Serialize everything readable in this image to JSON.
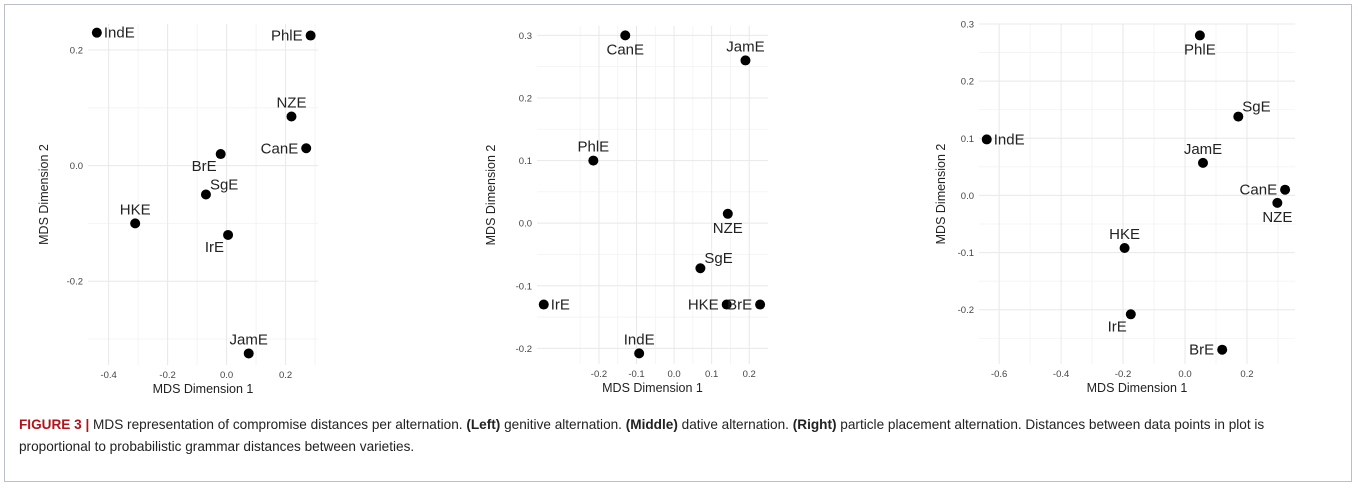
{
  "chart_data": [
    {
      "type": "scatter",
      "title": "",
      "xlabel": "MDS Dimension 1",
      "ylabel": "MDS Dimension 2",
      "xlim": [
        -0.47,
        0.31
      ],
      "ylim": [
        -0.345,
        0.245
      ],
      "x_ticks": [
        -0.4,
        -0.2,
        0.0,
        0.2
      ],
      "x_tick_labels": [
        "-0.4",
        "-0.2",
        "0.0",
        "0.2"
      ],
      "y_ticks": [
        -0.2,
        0.0,
        0.2
      ],
      "y_tick_labels": [
        "-0.2",
        "0.0",
        "0.2"
      ],
      "grid": true,
      "points": [
        {
          "label": "IndE",
          "x": -0.44,
          "y": 0.23,
          "label_pos": "right"
        },
        {
          "label": "PhlE",
          "x": 0.285,
          "y": 0.225,
          "label_pos": "left"
        },
        {
          "label": "NZE",
          "x": 0.22,
          "y": 0.085,
          "label_pos": "above"
        },
        {
          "label": "CanE",
          "x": 0.27,
          "y": 0.03,
          "label_pos": "left"
        },
        {
          "label": "BrE",
          "x": -0.02,
          "y": 0.02,
          "label_pos": "below-left"
        },
        {
          "label": "SgE",
          "x": -0.07,
          "y": -0.05,
          "label_pos": "above-right"
        },
        {
          "label": "HKE",
          "x": -0.31,
          "y": -0.1,
          "label_pos": "above"
        },
        {
          "label": "IrE",
          "x": 0.005,
          "y": -0.12,
          "label_pos": "below-left"
        },
        {
          "label": "JamE",
          "x": 0.075,
          "y": -0.325,
          "label_pos": "above"
        }
      ]
    },
    {
      "type": "scatter",
      "title": "",
      "xlabel": "MDS Dimension 1",
      "ylabel": "MDS Dimension 2",
      "xlim": [
        -0.365,
        0.25
      ],
      "ylim": [
        -0.225,
        0.315
      ],
      "x_ticks": [
        -0.2,
        -0.1,
        0.0,
        0.1,
        0.2
      ],
      "x_tick_labels": [
        "-0.2",
        "-0.1",
        "0.0",
        "0.1",
        "0.2"
      ],
      "y_ticks": [
        -0.2,
        -0.1,
        0.0,
        0.1,
        0.2,
        0.3
      ],
      "y_tick_labels": [
        "-0.2",
        "-0.1",
        "0.0",
        "0.1",
        "0.2",
        "0.3"
      ],
      "grid": true,
      "points": [
        {
          "label": "CanE",
          "x": -0.13,
          "y": 0.3,
          "label_pos": "below"
        },
        {
          "label": "JamE",
          "x": 0.19,
          "y": 0.26,
          "label_pos": "above"
        },
        {
          "label": "PhlE",
          "x": -0.215,
          "y": 0.1,
          "label_pos": "above"
        },
        {
          "label": "NZE",
          "x": 0.143,
          "y": 0.015,
          "label_pos": "below"
        },
        {
          "label": "SgE",
          "x": 0.07,
          "y": -0.072,
          "label_pos": "above-right"
        },
        {
          "label": "IrE",
          "x": -0.347,
          "y": -0.13,
          "label_pos": "right"
        },
        {
          "label": "HKE",
          "x": 0.14,
          "y": -0.13,
          "label_pos": "left"
        },
        {
          "label": "BrE",
          "x": 0.229,
          "y": -0.13,
          "label_pos": "left"
        },
        {
          "label": "IndE",
          "x": -0.093,
          "y": -0.208,
          "label_pos": "above"
        }
      ]
    },
    {
      "type": "scatter",
      "title": "",
      "xlabel": "MDS Dimension 1",
      "ylabel": "MDS Dimension 2",
      "xlim": [
        -0.665,
        0.355
      ],
      "ylim": [
        -0.295,
        0.3
      ],
      "x_ticks": [
        -0.6,
        -0.4,
        -0.2,
        0.0,
        0.2
      ],
      "x_tick_labels": [
        "-0.6",
        "-0.4",
        "-0.2",
        "0.0",
        "0.2"
      ],
      "y_ticks": [
        -0.2,
        -0.1,
        0.0,
        0.1,
        0.2,
        0.3
      ],
      "y_tick_labels": [
        "-0.2",
        "-0.1",
        "0.0",
        "0.1",
        "0.2",
        "0.3"
      ],
      "grid": true,
      "points": [
        {
          "label": "PhlE",
          "x": 0.048,
          "y": 0.28,
          "label_pos": "below"
        },
        {
          "label": "SgE",
          "x": 0.172,
          "y": 0.138,
          "label_pos": "above-right"
        },
        {
          "label": "IndE",
          "x": -0.64,
          "y": 0.098,
          "label_pos": "right"
        },
        {
          "label": "JamE",
          "x": 0.058,
          "y": 0.057,
          "label_pos": "above"
        },
        {
          "label": "CanE",
          "x": 0.323,
          "y": 0.01,
          "label_pos": "left"
        },
        {
          "label": "NZE",
          "x": 0.298,
          "y": -0.013,
          "label_pos": "below"
        },
        {
          "label": "HKE",
          "x": -0.195,
          "y": -0.092,
          "label_pos": "above"
        },
        {
          "label": "IrE",
          "x": -0.175,
          "y": -0.208,
          "label_pos": "below-left"
        },
        {
          "label": "BrE",
          "x": 0.12,
          "y": -0.27,
          "label_pos": "left"
        }
      ]
    }
  ],
  "caption": {
    "figure_label": "FIGURE 3 |",
    "part1": " MDS representation of compromise distances per alternation. ",
    "left_label": "(Left)",
    "part2": " genitive alternation. ",
    "middle_label": "(Middle)",
    "part3": " dative alternation. ",
    "right_label": "(Right)",
    "part4": " particle placement alternation. Distances between data points in plot is proportional to probabilistic grammar distances between varieties."
  },
  "colors": {
    "point": "#000000",
    "grid": "#e8e8e8",
    "text": "#222222",
    "figure_label": "#b2131b",
    "frame": "#b9c0c7"
  }
}
